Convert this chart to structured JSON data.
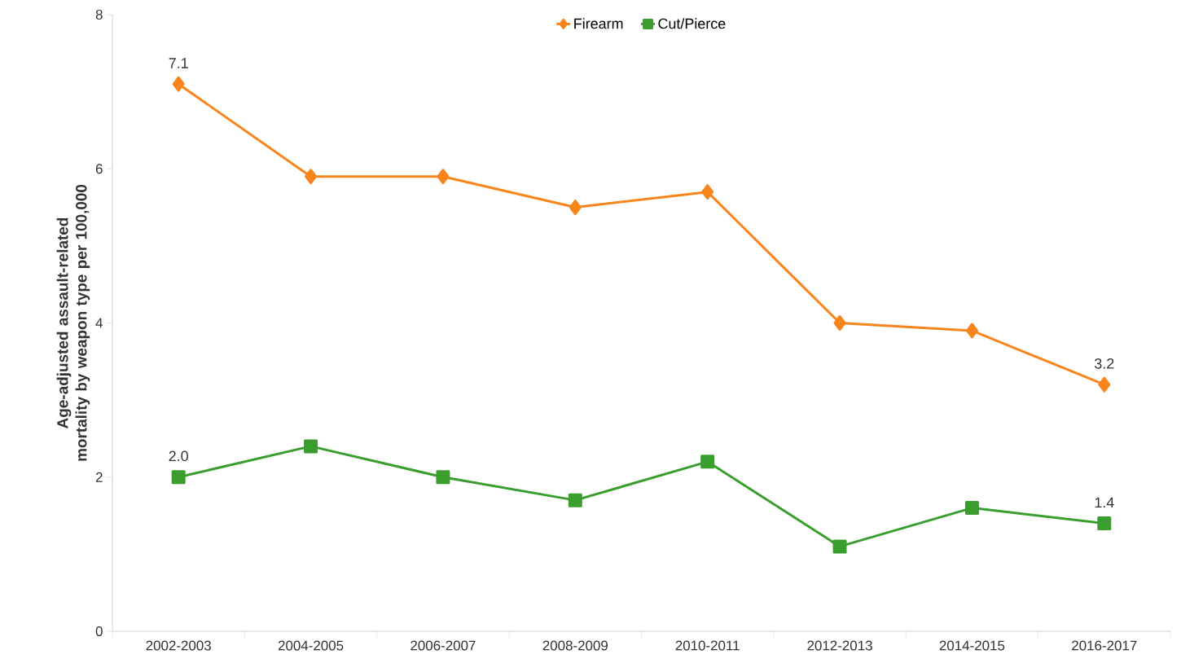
{
  "chart_data": {
    "type": "line",
    "ylabel": "Age-adjusted assault-related mortality by weapon type per 100,000",
    "categories": [
      "2002-2003",
      "2004-2005",
      "2006-2007",
      "2008-2009",
      "2010-2011",
      "2012-2013",
      "2014-2015",
      "2016-2017"
    ],
    "series": [
      {
        "name": "Firearm",
        "color": "#f7851c",
        "marker": "diamond",
        "values": [
          7.1,
          5.9,
          5.9,
          5.5,
          5.7,
          4.0,
          3.9,
          3.2
        ],
        "value_labels": [
          "7.1",
          null,
          null,
          null,
          null,
          null,
          null,
          "3.2"
        ]
      },
      {
        "name": "Cut/Pierce",
        "color": "#3a9e2e",
        "marker": "square",
        "values": [
          2.0,
          2.4,
          2.0,
          1.7,
          2.2,
          1.1,
          1.6,
          1.4
        ],
        "value_labels": [
          "2.0",
          null,
          null,
          null,
          null,
          null,
          null,
          "1.4"
        ]
      }
    ],
    "ylim": [
      0,
      8
    ],
    "yticks": [
      0,
      2,
      4,
      6,
      8
    ],
    "grid": false,
    "legend": "top",
    "line_style": "solid"
  }
}
